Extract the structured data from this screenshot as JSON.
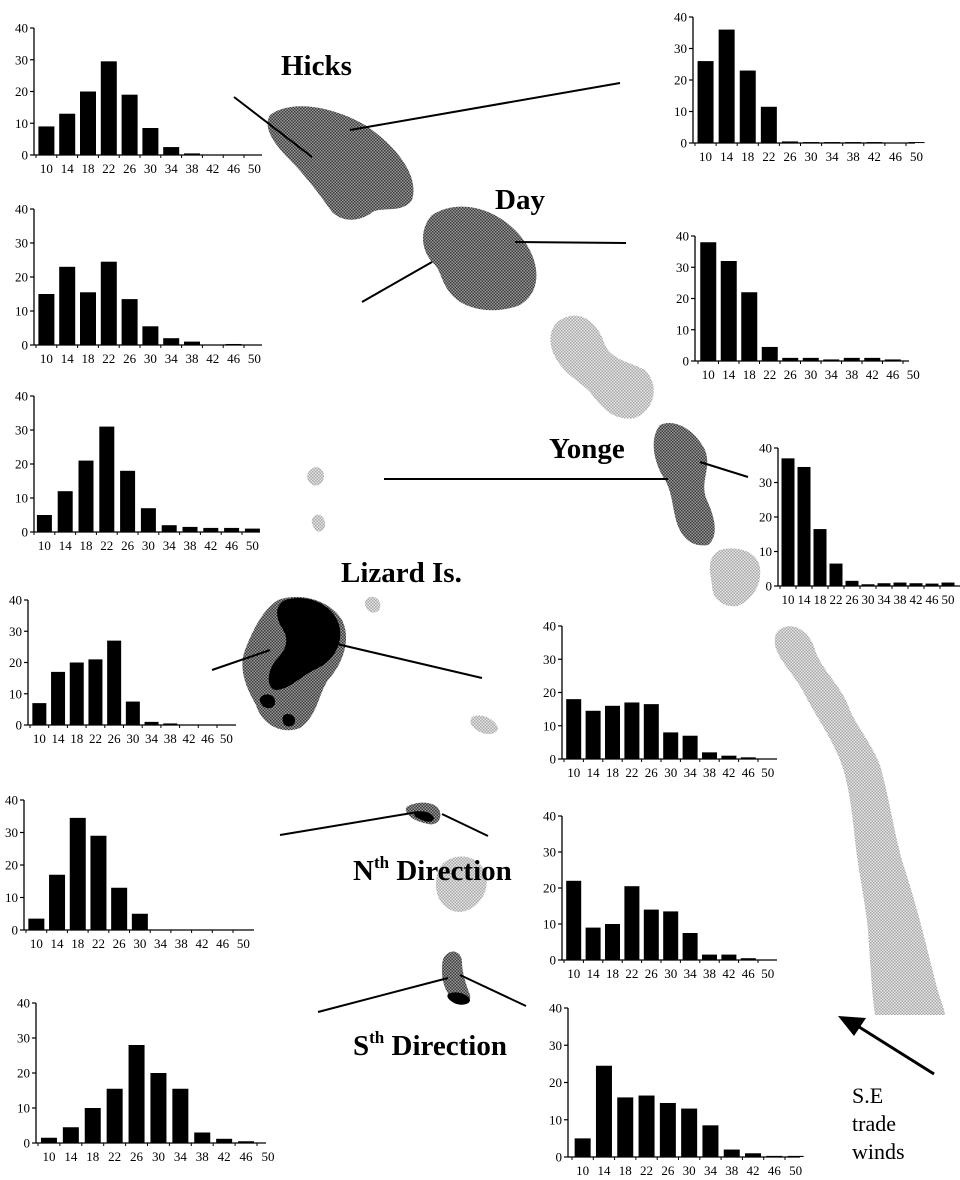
{
  "reef_labels": {
    "hicks": "Hicks",
    "day": "Day",
    "yonge": "Yonge",
    "lizard": "Lizard Is.",
    "north_base": "N",
    "north_sup": "th",
    "north_rest": " Direction",
    "south_base": "S",
    "south_sup": "th",
    "south_rest": " Direction"
  },
  "wind_label": {
    "line1": "S.E",
    "line2": "trade",
    "line3": "winds"
  },
  "colors": {
    "bar": "#000000",
    "reef_dark": "#5a5a5a",
    "reef_light": "#bdbdbd",
    "reef_black": "#000000",
    "axis": "#000000"
  },
  "chart_data": [
    {
      "type": "bar",
      "site": "left-1",
      "categories": [
        "10",
        "14",
        "18",
        "22",
        "26",
        "30",
        "34",
        "38",
        "42",
        "46",
        "50"
      ],
      "values": [
        9,
        13,
        20,
        29.5,
        19,
        8.5,
        2.5,
        0.5,
        0,
        0,
        0
      ],
      "ylim": [
        0,
        40
      ],
      "yticks": [
        0,
        10,
        20,
        30,
        40
      ]
    },
    {
      "type": "bar",
      "site": "left-2",
      "categories": [
        "10",
        "14",
        "18",
        "22",
        "26",
        "30",
        "34",
        "38",
        "42",
        "46",
        "50"
      ],
      "values": [
        15,
        23,
        15.5,
        24.5,
        13.5,
        5.5,
        2,
        1,
        0,
        0.3,
        0
      ],
      "ylim": [
        0,
        40
      ],
      "yticks": [
        0,
        10,
        20,
        30,
        40
      ]
    },
    {
      "type": "bar",
      "site": "left-3",
      "categories": [
        "10",
        "14",
        "18",
        "22",
        "26",
        "30",
        "34",
        "38",
        "42",
        "46",
        "50"
      ],
      "values": [
        5,
        12,
        21,
        31,
        18,
        7,
        2,
        1.5,
        1.2,
        1.2,
        1
      ],
      "ylim": [
        0,
        40
      ],
      "yticks": [
        0,
        10,
        20,
        30,
        40
      ]
    },
    {
      "type": "bar",
      "site": "left-4",
      "categories": [
        "10",
        "14",
        "18",
        "22",
        "26",
        "30",
        "34",
        "38",
        "42",
        "46",
        "50"
      ],
      "values": [
        7,
        17,
        20,
        21,
        27,
        7.5,
        1,
        0.5,
        0,
        0,
        0
      ],
      "ylim": [
        0,
        40
      ],
      "yticks": [
        0,
        10,
        20,
        30,
        40
      ]
    },
    {
      "type": "bar",
      "site": "left-5",
      "categories": [
        "10",
        "14",
        "18",
        "22",
        "26",
        "30",
        "34",
        "38",
        "42",
        "46",
        "50"
      ],
      "values": [
        3.5,
        17,
        34.5,
        29,
        13,
        5,
        0,
        0,
        0,
        0,
        0
      ],
      "ylim": [
        0,
        40
      ],
      "yticks": [
        0,
        10,
        20,
        30,
        40
      ]
    },
    {
      "type": "bar",
      "site": "left-6",
      "categories": [
        "10",
        "14",
        "18",
        "22",
        "26",
        "30",
        "34",
        "38",
        "42",
        "46",
        "50"
      ],
      "values": [
        1.5,
        4.5,
        10,
        15.5,
        28,
        20,
        15.5,
        3,
        1.2,
        0.5,
        0
      ],
      "ylim": [
        0,
        40
      ],
      "yticks": [
        0,
        10,
        20,
        30,
        40
      ]
    },
    {
      "type": "bar",
      "site": "right-1",
      "categories": [
        "10",
        "14",
        "18",
        "22",
        "26",
        "30",
        "34",
        "38",
        "42",
        "46",
        "50"
      ],
      "values": [
        26,
        36,
        23,
        11.5,
        0.5,
        0.3,
        0.3,
        0.3,
        0.3,
        0,
        0.3
      ],
      "ylim": [
        0,
        40
      ],
      "yticks": [
        0,
        10,
        20,
        30,
        40
      ]
    },
    {
      "type": "bar",
      "site": "right-2",
      "categories": [
        "10",
        "14",
        "18",
        "22",
        "26",
        "30",
        "34",
        "38",
        "42",
        "46",
        "50"
      ],
      "values": [
        38,
        32,
        22,
        4.5,
        1,
        1,
        0.5,
        1,
        1,
        0.5,
        0
      ],
      "ylim": [
        0,
        40
      ],
      "yticks": [
        0,
        10,
        20,
        30,
        40
      ]
    },
    {
      "type": "bar",
      "site": "right-3",
      "categories": [
        "10",
        "14",
        "18",
        "22",
        "26",
        "30",
        "34",
        "38",
        "42",
        "46",
        "50"
      ],
      "values": [
        37,
        34.5,
        16.5,
        6.5,
        1.5,
        0.5,
        0.8,
        1,
        0.8,
        0.7,
        1
      ],
      "ylim": [
        0,
        40
      ],
      "yticks": [
        0,
        10,
        20,
        30,
        40
      ]
    },
    {
      "type": "bar",
      "site": "right-4",
      "categories": [
        "10",
        "14",
        "18",
        "22",
        "26",
        "30",
        "34",
        "38",
        "42",
        "46",
        "50"
      ],
      "values": [
        18,
        14.5,
        16,
        17,
        16.5,
        8,
        7,
        2,
        1,
        0.5,
        0
      ],
      "ylim": [
        0,
        40
      ],
      "yticks": [
        0,
        10,
        20,
        30,
        40
      ]
    },
    {
      "type": "bar",
      "site": "right-5",
      "categories": [
        "10",
        "14",
        "18",
        "22",
        "26",
        "30",
        "34",
        "38",
        "42",
        "46",
        "50"
      ],
      "values": [
        22,
        9,
        10,
        20.5,
        14,
        13.5,
        7.5,
        1.5,
        1.5,
        0.5,
        0
      ],
      "ylim": [
        0,
        40
      ],
      "yticks": [
        0,
        10,
        20,
        30,
        40
      ]
    },
    {
      "type": "bar",
      "site": "right-6",
      "categories": [
        "10",
        "14",
        "18",
        "22",
        "26",
        "30",
        "34",
        "38",
        "42",
        "46",
        "50"
      ],
      "values": [
        5,
        24.5,
        16,
        16.5,
        14.5,
        13,
        8.5,
        2,
        1,
        0.3,
        0.3
      ],
      "ylim": [
        0,
        40
      ],
      "yticks": [
        0,
        10,
        20,
        30,
        40
      ]
    }
  ]
}
